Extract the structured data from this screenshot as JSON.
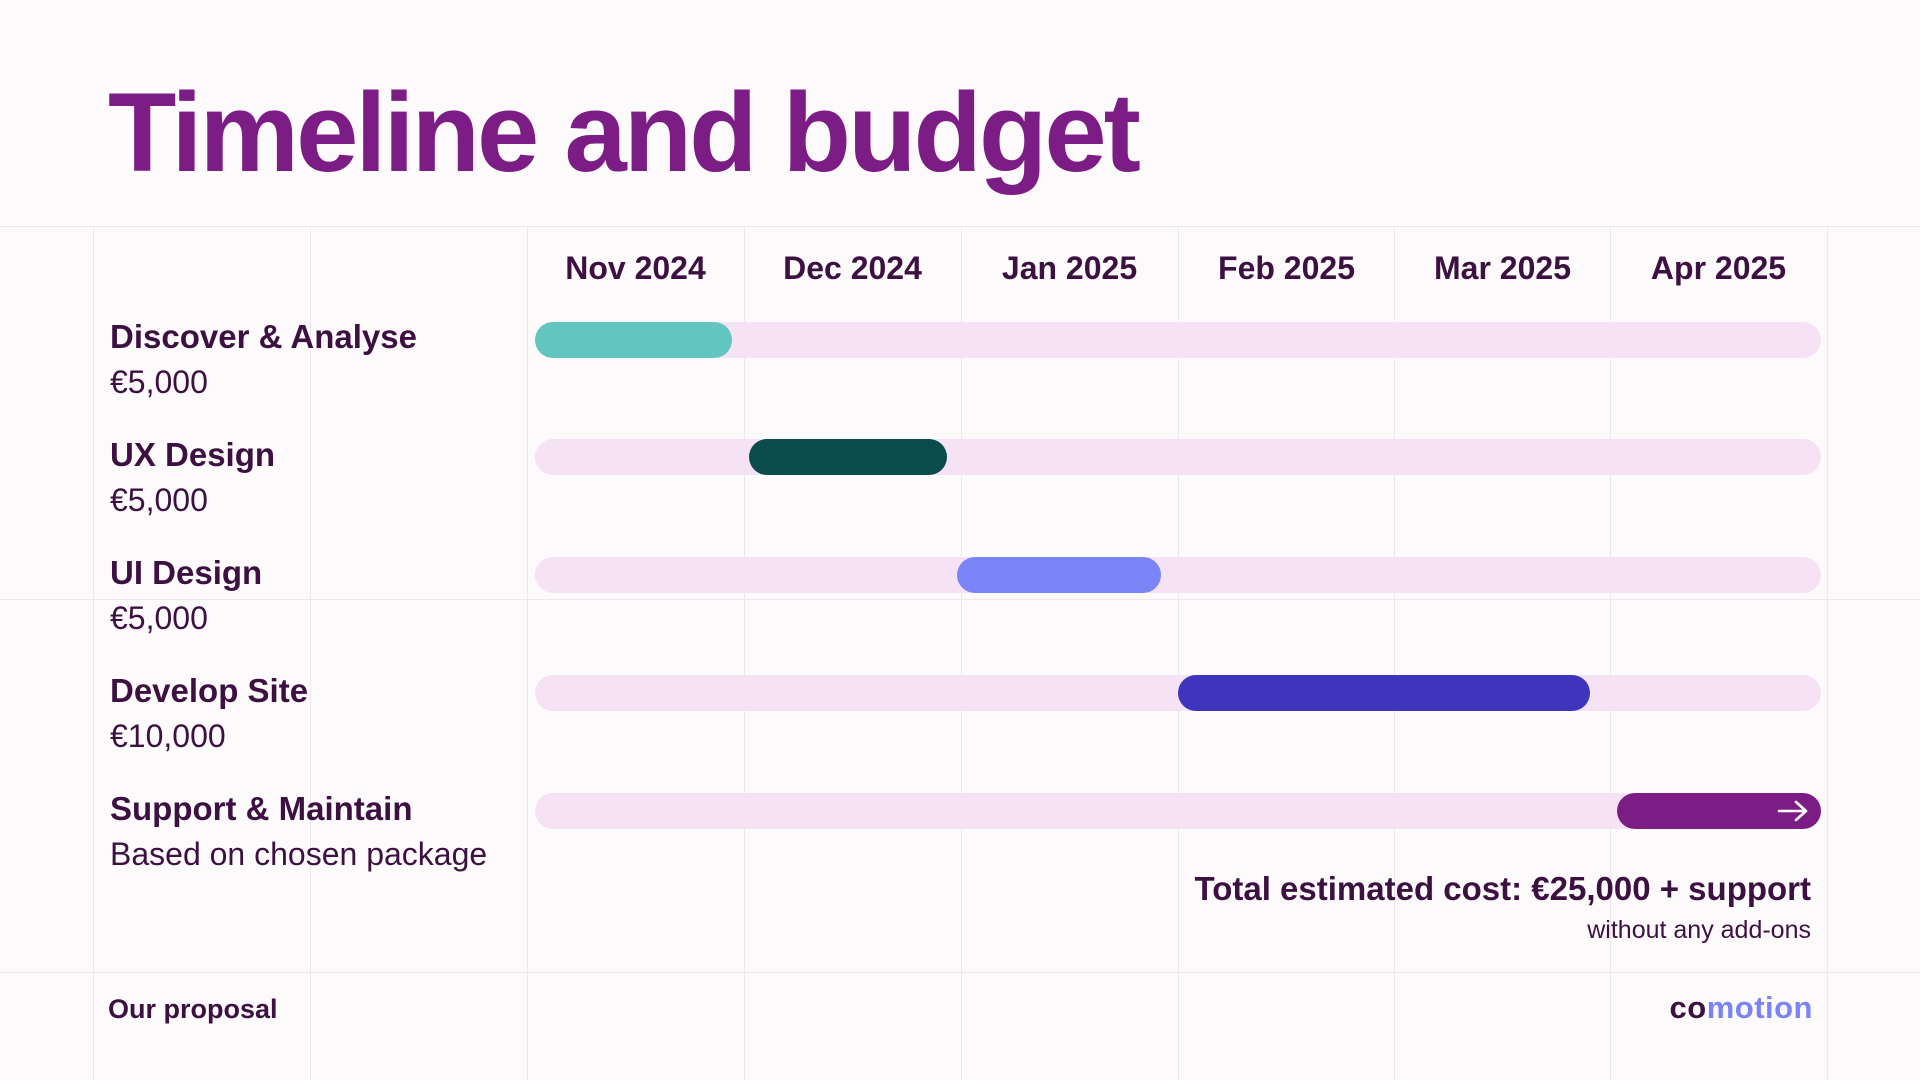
{
  "title": "Timeline and budget",
  "months": [
    "Nov 2024",
    "Dec 2024",
    "Jan 2025",
    "Feb 2025",
    "Mar 2025",
    "Apr 2025"
  ],
  "phases": [
    {
      "name": "Discover & Analyse",
      "cost": "€5,000",
      "start_month": 0,
      "end_month": 0.92,
      "color": "#63c5c0"
    },
    {
      "name": "UX Design",
      "cost": "€5,000",
      "start_month": 1,
      "end_month": 1.92,
      "color": "#0a4b4c"
    },
    {
      "name": "UI Design",
      "cost": "€5,000",
      "start_month": 1.97,
      "end_month": 2.92,
      "color": "#7b84f7"
    },
    {
      "name": "Develop Site",
      "cost": "€10,000",
      "start_month": 3,
      "end_month": 4.92,
      "color": "#3f35bd"
    },
    {
      "name": "Support & Maintain",
      "cost": "Based on chosen package",
      "start_month": 5.05,
      "end_month": 6,
      "color": "#7b1d85",
      "icon": "arrow-right-icon"
    }
  ],
  "total": "Total estimated cost: €25,000 + support",
  "total_note": "without any add-ons",
  "footer": "Our proposal",
  "logo": "comotion",
  "colors": {
    "title": "#7b1d85",
    "text": "#3d1042",
    "track": "#f5e2f5"
  }
}
